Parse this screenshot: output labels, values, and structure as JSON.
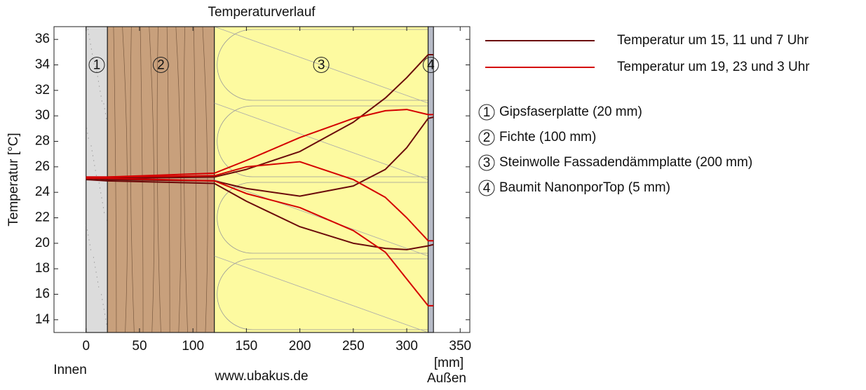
{
  "chart_data": {
    "type": "line",
    "title": "Temperaturverlauf",
    "ylabel": "Temperatur [°C]",
    "xunit": "[mm]",
    "left_label": "Innen",
    "right_label": "Außen",
    "source": "www.ubakus.de",
    "xlim": [
      -30,
      359
    ],
    "ylim": [
      13,
      37
    ],
    "xticks": [
      0,
      50,
      100,
      150,
      200,
      250,
      300,
      350
    ],
    "yticks": [
      14,
      16,
      18,
      20,
      22,
      24,
      26,
      28,
      30,
      32,
      34,
      36
    ],
    "layers": [
      {
        "label": "1",
        "name": "Gipsfaserplatte (20 mm)",
        "start": 0,
        "end": 20,
        "color": "#dcdcdc"
      },
      {
        "label": "2",
        "name": "Fichte (100 mm)",
        "start": 20,
        "end": 120,
        "color": "#c8a07c"
      },
      {
        "label": "3",
        "name": "Steinwolle Fassadendämmplatte (200 mm)",
        "start": 120,
        "end": 320,
        "color": "#fdfaa0"
      },
      {
        "label": "4",
        "name": "Baumit NanonporTop (5 mm)",
        "start": 320,
        "end": 325,
        "color": "#b8bcc8"
      }
    ],
    "x": [
      0,
      20,
      120,
      150,
      200,
      250,
      280,
      300,
      320,
      325
    ],
    "series": [
      {
        "name": "Temperatur um 15, 11 und 7 Uhr",
        "color": "#6b0a0a",
        "values": [
          [
            25.1,
            25.1,
            25.2,
            25.8,
            27.2,
            29.5,
            31.4,
            33.0,
            34.8,
            34.8
          ],
          [
            25.1,
            25.0,
            24.9,
            24.3,
            23.7,
            24.5,
            25.8,
            27.5,
            29.8,
            29.9
          ],
          [
            25.0,
            24.9,
            24.7,
            23.3,
            21.3,
            20.0,
            19.6,
            19.5,
            19.8,
            19.9
          ]
        ]
      },
      {
        "name": "Temperatur um 19, 23 und 3 Uhr",
        "color": "#d40000",
        "values": [
          [
            25.2,
            25.2,
            25.5,
            26.5,
            28.3,
            29.8,
            30.4,
            30.5,
            30.1,
            30.1
          ],
          [
            25.2,
            25.2,
            25.3,
            26.0,
            26.4,
            25.0,
            23.6,
            22.0,
            20.2,
            20.2
          ],
          [
            25.1,
            25.1,
            24.9,
            23.9,
            22.8,
            21.0,
            19.3,
            17.2,
            15.1,
            15.1
          ]
        ]
      }
    ]
  }
}
